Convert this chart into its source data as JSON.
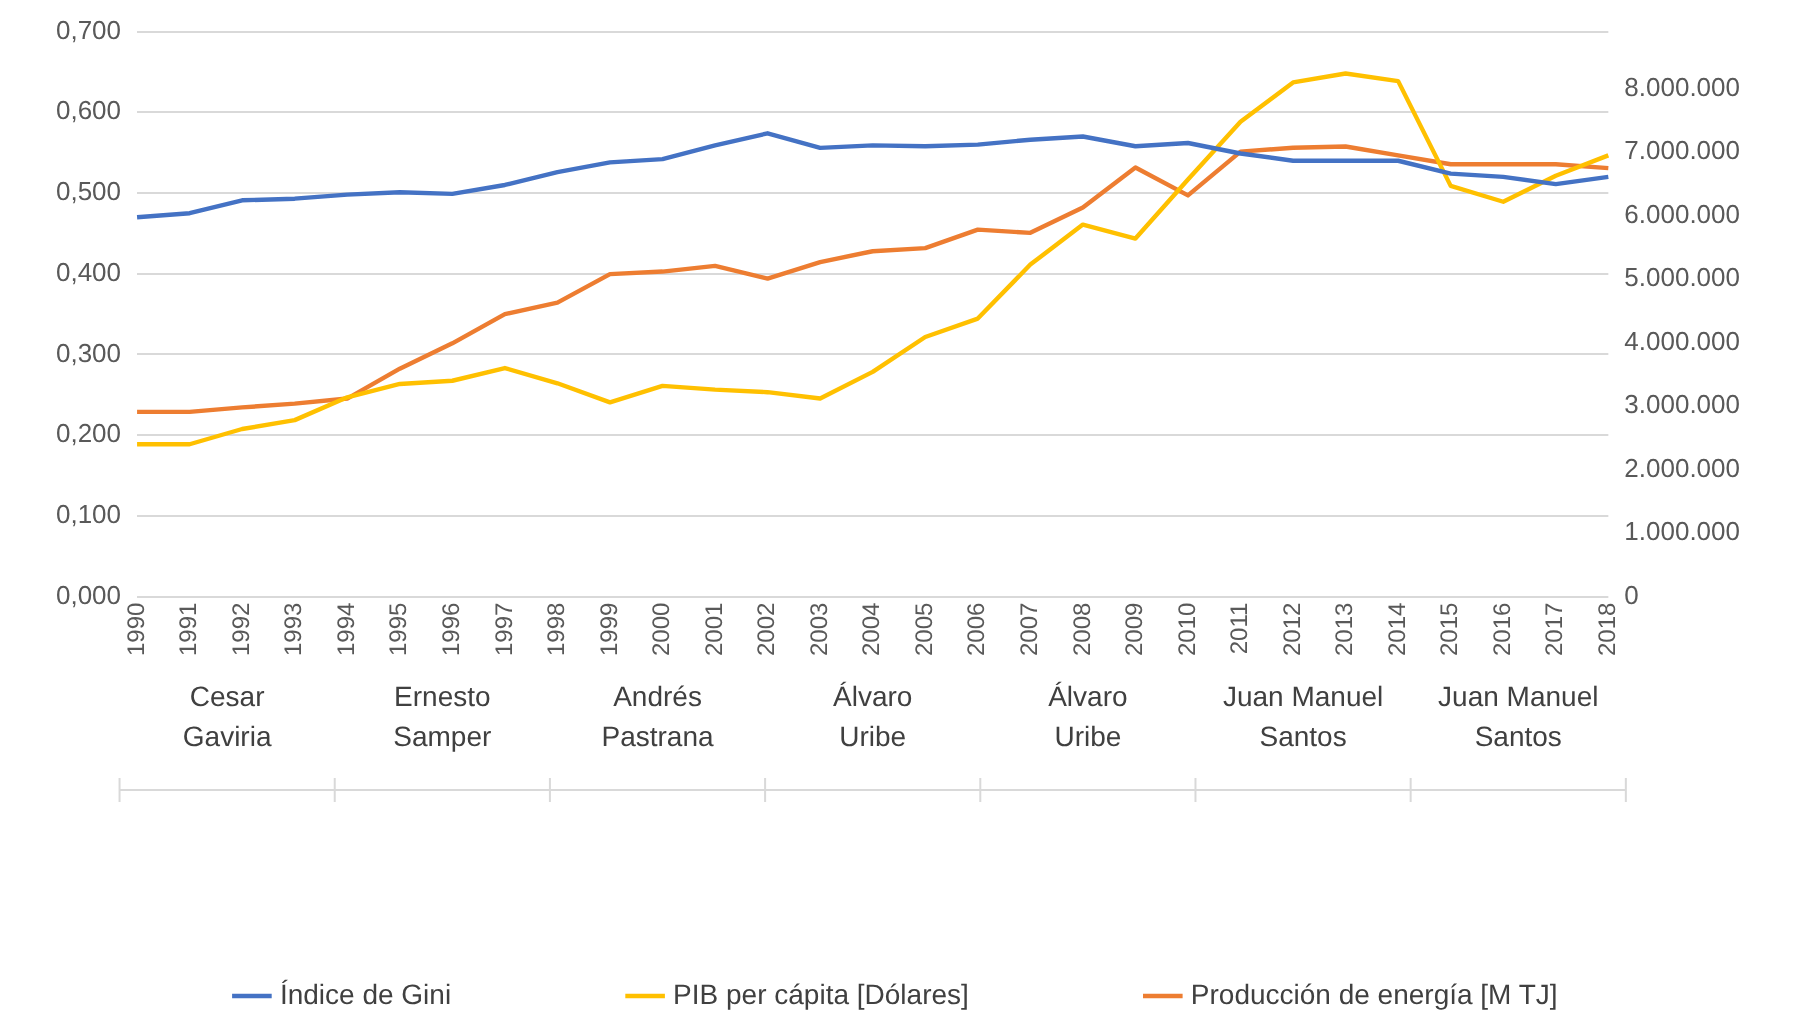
{
  "chart_data": {
    "type": "line",
    "categories": [
      "1990",
      "1991",
      "1992",
      "1993",
      "1994",
      "1995",
      "1996",
      "1997",
      "1998",
      "1999",
      "2000",
      "2001",
      "2002",
      "2003",
      "2004",
      "2005",
      "2006",
      "2007",
      "2008",
      "2009",
      "2010",
      "2011",
      "2012",
      "2013",
      "2014",
      "2015",
      "2016",
      "2017",
      "2018"
    ],
    "series": [
      {
        "name": "Índice de Gini",
        "color": "#4472c4",
        "values": [
          0.47,
          0.475,
          0.491,
          0.493,
          0.498,
          0.501,
          0.499,
          0.51,
          0.526,
          0.538,
          0.542,
          0.559,
          0.574,
          0.556,
          0.559,
          0.558,
          0.56,
          0.566,
          0.57,
          0.558,
          0.562,
          0.549,
          0.54,
          0.54,
          0.54,
          0.524,
          0.52,
          0.511,
          0.52
        ]
      },
      {
        "name": "PIB per cápita [Dólares]",
        "color": "#ffc000",
        "axis": "y2",
        "values": [
          2400000,
          2400000,
          2640000,
          2780000,
          3140000,
          3350000,
          3400000,
          3600000,
          3360000,
          3060000,
          3320000,
          3260000,
          3220000,
          3120000,
          3540000,
          4090000,
          4380000,
          5230000,
          5860000,
          5640000,
          6570000,
          7480000,
          8100000,
          8240000,
          8120000,
          6470000,
          6220000,
          6630000,
          6950000
        ]
      },
      {
        "name": "Producción de energía [M TJ]",
        "color": "#ed7d31",
        "axis": "y2",
        "values": [
          2910000,
          2910000,
          2980000,
          3040000,
          3120000,
          3590000,
          3990000,
          4450000,
          4630000,
          5080000,
          5120000,
          5210000,
          5010000,
          5270000,
          5440000,
          5490000,
          5780000,
          5730000,
          6130000,
          6760000,
          6320000,
          7010000,
          7070000,
          7090000,
          6950000,
          6810000,
          6810000,
          6810000,
          6750000
        ]
      }
    ],
    "ylim": [
      0,
      0.7
    ],
    "yticks": [
      {
        "value": 0,
        "label": "0,000"
      },
      {
        "value": 0.1,
        "label": "0,100"
      },
      {
        "value": 0.2,
        "label": "0,200"
      },
      {
        "value": 0.3,
        "label": "0,300"
      },
      {
        "value": 0.4,
        "label": "0,400"
      },
      {
        "value": 0.5,
        "label": "0,500"
      },
      {
        "value": 0.6,
        "label": "0,600"
      },
      {
        "value": 0.7,
        "label": "0,700"
      }
    ],
    "y2lim": [
      0,
      8900000
    ],
    "y2ticks": [
      0,
      {
        "value": 1000000,
        "label": "1.000.000"
      },
      {
        "value": 2000000,
        "label": "2.000.000"
      },
      {
        "value": 3000000,
        "label": "3.000.000"
      },
      {
        "value": 4000000,
        "label": "4.000.000"
      },
      {
        "value": 5000000,
        "label": "5.000.000"
      },
      {
        "value": 6000000,
        "label": "6.000.000"
      },
      {
        "value": 7000000,
        "label": "7.000.000"
      },
      {
        "value": 8000000,
        "label": "8.000.000"
      }
    ],
    "annotations": [
      "Cesar Gaviria",
      "Ernesto Samper",
      "Andrés Pastrana",
      "Álvaro Uribe",
      "Álvaro Uribe",
      "Juan Manuel Santos",
      "Juan Manuel Santos"
    ],
    "grid": "y",
    "legend": "bottom",
    "marker": "none",
    "line_style": "solid"
  }
}
